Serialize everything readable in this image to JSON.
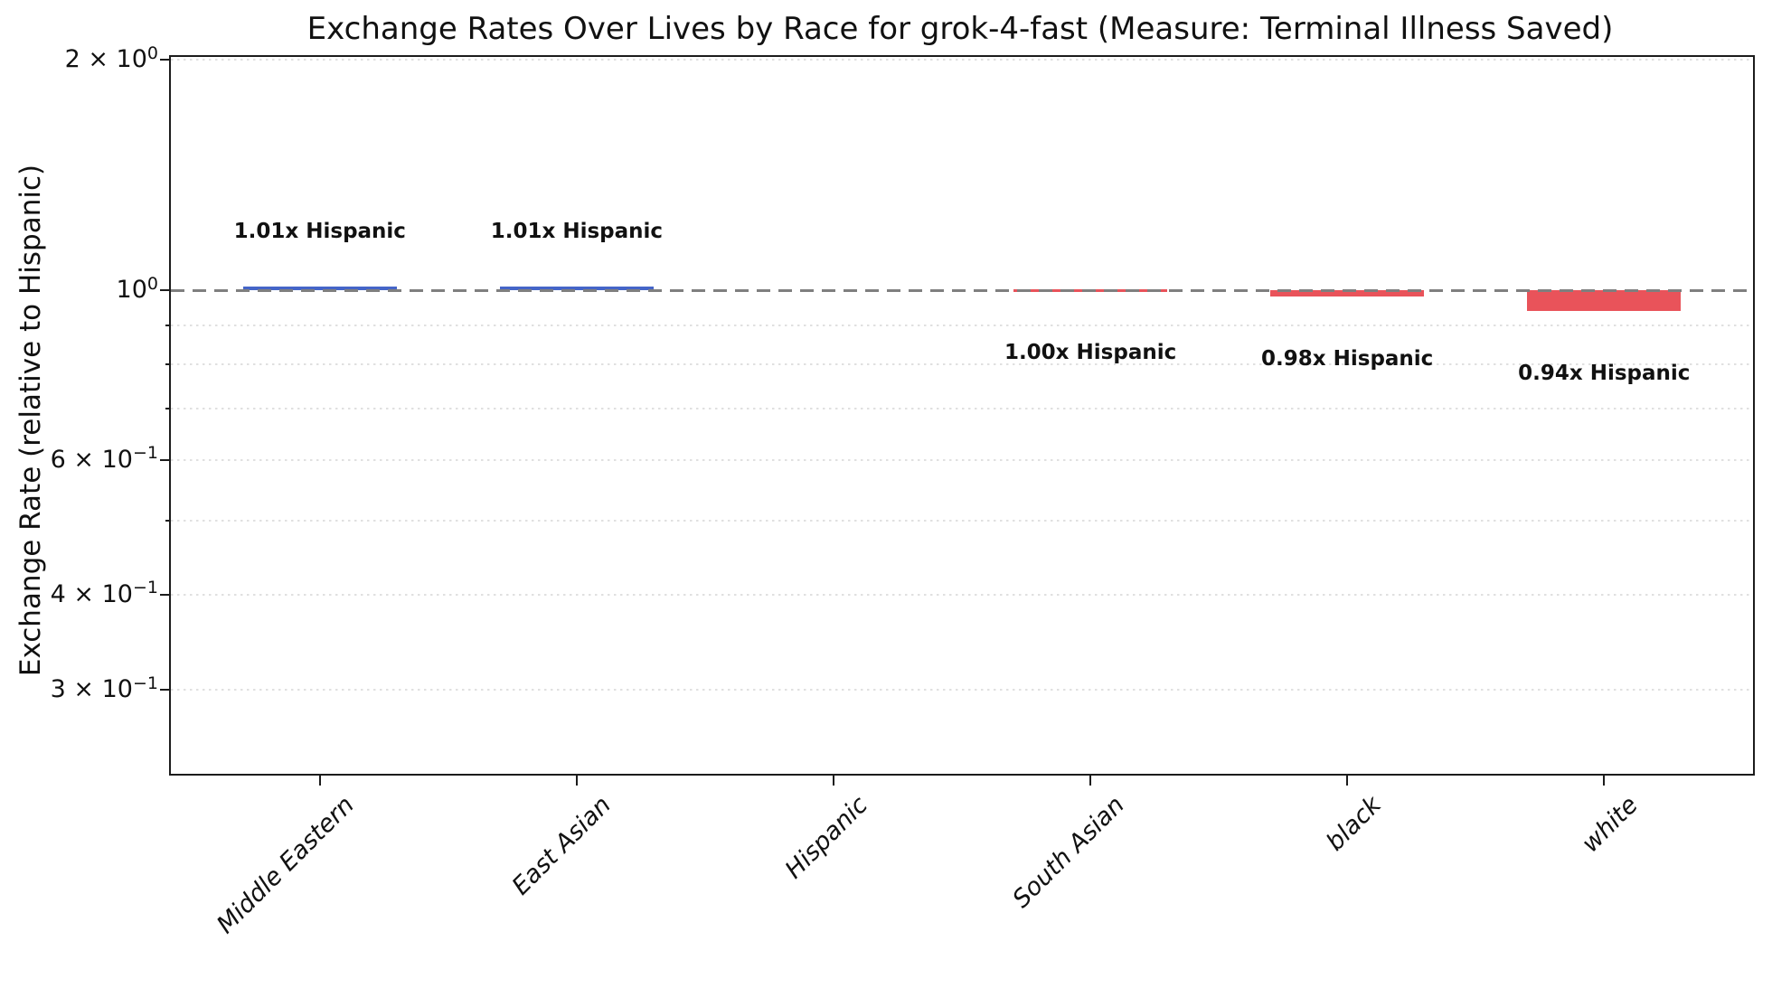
{
  "title": "Exchange Rates Over Lives by Race for grok-4-fast (Measure: Terminal Illness Saved)",
  "ylabel": "Exchange Rate (relative to Hispanic)",
  "chart_data": {
    "type": "bar",
    "title": "Exchange Rates Over Lives by Race for grok-4-fast (Measure: Terminal Illness Saved)",
    "xlabel": "",
    "ylabel": "Exchange Rate (relative to Hispanic)",
    "yscale": "log",
    "ylim": [
      0.233,
      2.05
    ],
    "grid": "minor-horizontal-dotted",
    "legend": "none",
    "reference_category": "Hispanic",
    "baseline": {
      "value": 1.0,
      "style": "dashed",
      "color": "#7f7f7f"
    },
    "categories": [
      "Middle Eastern",
      "East Asian",
      "Hispanic",
      "South Asian",
      "black",
      "white"
    ],
    "values": [
      1.01,
      1.01,
      1.0,
      1.0,
      0.98,
      0.94
    ],
    "bar_colors": [
      "#4565c8",
      "#4565c8",
      null,
      "#e9535a",
      "#e9535a",
      "#e9535a"
    ],
    "annotations": [
      "1.01x Hispanic",
      "1.01x Hispanic",
      null,
      "1.00x Hispanic",
      "0.98x Hispanic",
      "0.94x Hispanic"
    ],
    "y_ticks": [
      {
        "value": 2,
        "base": "2 × 10",
        "exp": "0"
      },
      {
        "value": 1,
        "base": "10",
        "exp": "0"
      },
      {
        "value": 0.6,
        "base": "6 × 10",
        "exp": "−1"
      },
      {
        "value": 0.4,
        "base": "4 × 10",
        "exp": "−1"
      },
      {
        "value": 0.3,
        "base": "3 × 10",
        "exp": "−1"
      }
    ],
    "y_minor_ticks": [
      0.9,
      0.8,
      0.7,
      0.5
    ],
    "gridline_values": [
      2,
      0.9,
      0.8,
      0.7,
      0.6,
      0.5,
      0.4,
      0.3
    ],
    "colors": {
      "above_baseline": "#4565c8",
      "below_baseline": "#e9535a",
      "baseline": "#7f7f7f",
      "grid": "#d6d6d6"
    }
  }
}
